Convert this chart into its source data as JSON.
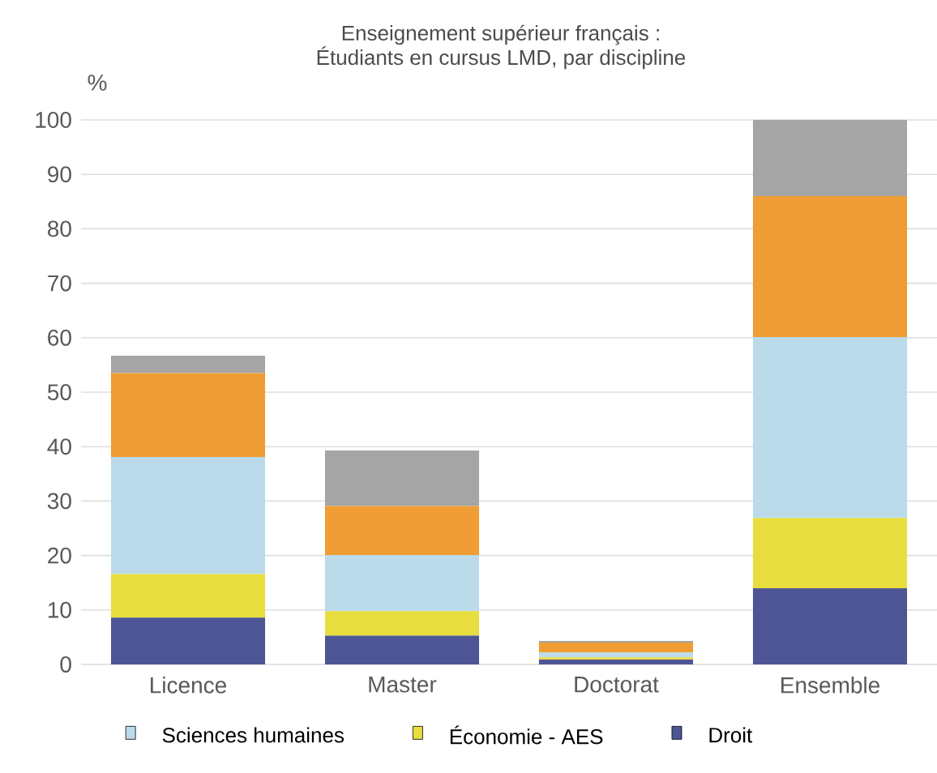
{
  "chart_data": {
    "type": "bar",
    "stacked": true,
    "title": "Enseignement supérieur français :\nÉtudiants en cursus LMD, par discipline",
    "ylabel": "%",
    "categories": [
      "Licence",
      "Master",
      "Doctorat",
      "Ensemble"
    ],
    "series": [
      {
        "name": "Droit",
        "color": "#4e5594",
        "values": [
          8.6,
          5.3,
          0.9,
          14.0
        ]
      },
      {
        "name": "Économie - AES",
        "color": "#e8dd3e",
        "values": [
          8.0,
          4.5,
          0.4,
          12.9
        ]
      },
      {
        "name": "Sciences humaines",
        "color": "#bbdaea",
        "values": [
          21.5,
          10.3,
          0.9,
          33.2
        ]
      },
      {
        "color": "#ef9d34",
        "values": [
          15.4,
          9.0,
          1.8,
          25.9
        ]
      },
      {
        "color": "#a4a5a4",
        "values": [
          3.2,
          10.2,
          0.3,
          14.0
        ]
      }
    ],
    "ylim": [
      0,
      100
    ],
    "yticks": [
      0,
      10,
      20,
      30,
      40,
      50,
      60,
      70,
      80,
      90,
      100
    ],
    "grid": "y",
    "legend": "bottom"
  }
}
